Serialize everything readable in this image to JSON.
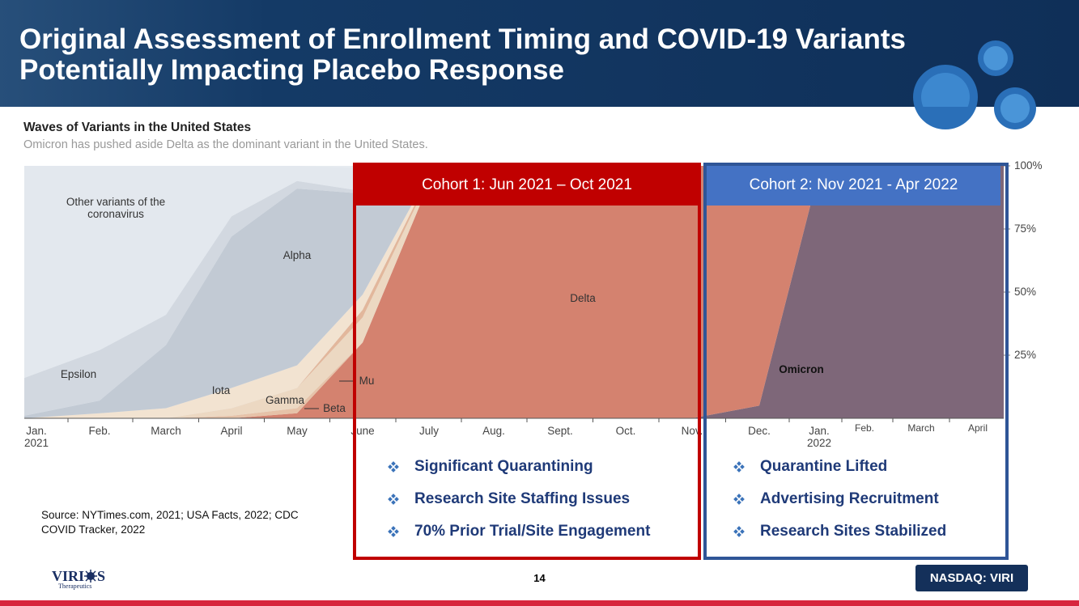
{
  "header": {
    "title": "Original Assessment of Enrollment Timing and COVID-19 Variants Potentially Impacting Placebo Response"
  },
  "chart_data": {
    "type": "area",
    "title": "Waves of Variants in the United States",
    "subtitle": "Omicron has pushed aside Delta as the dominant variant in the United States.",
    "categories": [
      "Jan.\n2021",
      "Feb.",
      "March",
      "April",
      "May",
      "June",
      "July",
      "Aug.",
      "Sept.",
      "Oct.",
      "Nov.",
      "Dec.",
      "Jan.\n2022",
      "Feb.",
      "March",
      "April"
    ],
    "series": [
      {
        "name": "Omicron",
        "color": "#7e6779",
        "values": [
          0,
          0,
          0,
          0,
          0,
          0,
          0,
          0,
          0,
          0,
          0,
          5,
          98,
          100,
          100,
          100
        ]
      },
      {
        "name": "Delta",
        "color": "#d4826f",
        "values": [
          0,
          0,
          0,
          0,
          2,
          30,
          93,
          99,
          99,
          99,
          100,
          95,
          2,
          0,
          0,
          0
        ]
      },
      {
        "name": "Beta",
        "color": "#e6c2a8",
        "values": [
          0,
          0,
          0,
          1,
          2,
          0,
          0,
          0,
          0,
          0,
          0,
          0,
          0,
          0,
          0,
          0
        ]
      },
      {
        "name": "Gamma",
        "color": "#ecd8c2",
        "values": [
          0,
          0,
          0,
          3,
          8,
          10,
          2,
          0,
          0,
          0,
          0,
          0,
          0,
          0,
          0,
          0
        ]
      },
      {
        "name": "Mu",
        "color": "#e2b79c",
        "values": [
          0,
          0,
          0,
          0,
          0,
          3,
          1,
          0,
          0,
          0,
          0,
          0,
          0,
          0,
          0,
          0
        ]
      },
      {
        "name": "Iota",
        "color": "#f2e3d1",
        "values": [
          0,
          2,
          4,
          8,
          9,
          6,
          1,
          0,
          0,
          0,
          0,
          0,
          0,
          0,
          0,
          0
        ]
      },
      {
        "name": "Alpha",
        "color": "#c2cad4",
        "values": [
          1,
          5,
          25,
          60,
          70,
          40,
          2,
          0,
          0,
          0,
          0,
          0,
          0,
          0,
          0,
          0
        ]
      },
      {
        "name": "Epsilon",
        "color": "#d2d8e0",
        "values": [
          15,
          20,
          12,
          8,
          3,
          1,
          0,
          0,
          0,
          0,
          0,
          0,
          0,
          0,
          0,
          0
        ]
      },
      {
        "name": "Other variants of the coronavirus",
        "color": "#e3e8ee",
        "values": [
          84,
          73,
          59,
          20,
          6,
          9,
          1,
          1,
          1,
          1,
          0,
          0,
          0,
          0,
          0,
          0
        ]
      }
    ],
    "ylim": [
      0,
      100
    ],
    "yticks": [
      {
        "value": 25,
        "label": "25%"
      },
      {
        "value": 50,
        "label": "50%"
      },
      {
        "value": 75,
        "label": "75%"
      },
      {
        "value": 100,
        "label": "100%"
      }
    ]
  },
  "cohorts": [
    {
      "title": "Cohort 1: Jun 2021 – Oct 2021",
      "bullets": [
        "Significant Quarantining",
        "Research Site Staffing Issues",
        "70% Prior Trial/Site Engagement"
      ]
    },
    {
      "title": "Cohort 2: Nov 2021 - Apr 2022",
      "bullets": [
        "Quarantine Lifted",
        "Advertising Recruitment",
        "Research Sites Stabilized"
      ]
    }
  ],
  "source": "Source: NYTimes.com, 2021; USA Facts, 2022; CDC COVID Tracker, 2022",
  "footer": {
    "logo": "VIRI",
    "logo_end": "S",
    "logo_sub": "Therapeutics",
    "page": "14",
    "ticker": "NASDAQ: VIRI"
  }
}
